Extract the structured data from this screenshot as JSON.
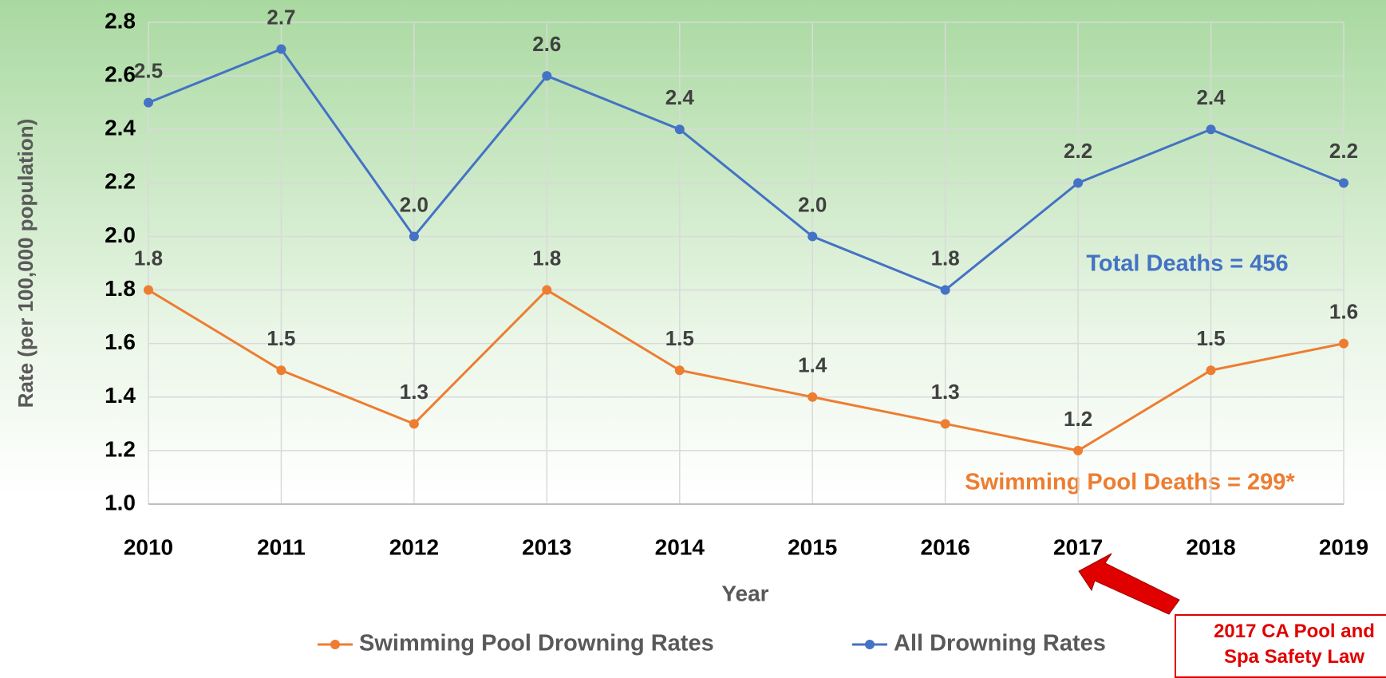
{
  "chart_data": {
    "type": "line",
    "categories": [
      "2010",
      "2011",
      "2012",
      "2013",
      "2014",
      "2015",
      "2016",
      "2017",
      "2018",
      "2019"
    ],
    "series": [
      {
        "name": "Swimming Pool Drowning Rates",
        "color": "#ed7d31",
        "values": [
          1.8,
          1.5,
          1.3,
          1.8,
          1.5,
          1.4,
          1.3,
          1.2,
          1.5,
          1.6
        ],
        "value_labels": [
          "1.8",
          "1.5",
          "1.3",
          "1.8",
          "1.5",
          "1.4",
          "1.3",
          "1.2",
          "1.5",
          "1.6"
        ]
      },
      {
        "name": "All Drowning Rates",
        "color": "#4472c4",
        "values": [
          2.5,
          2.7,
          2.0,
          2.6,
          2.4,
          2.0,
          1.8,
          2.2,
          2.4,
          2.2
        ],
        "value_labels": [
          "2.5",
          "2.7",
          "2.0",
          "2.6",
          "2.4",
          "2.0",
          "1.8",
          "2.2",
          "2.4",
          "2.2"
        ]
      }
    ],
    "xlabel": "Year",
    "ylabel": "Rate (per 100,000 population)",
    "ylim": [
      1.0,
      2.8
    ],
    "yticks": [
      {
        "value": 1.0,
        "label": "1.0"
      },
      1.2,
      1.4,
      1.6,
      1.8,
      {
        "value": 2.0,
        "label": "2.0"
      },
      2.2,
      2.4,
      2.6,
      2.8
    ],
    "grid": true,
    "annotations": [
      "Total Deaths = 456",
      "Swimming Pool Deaths = 299*"
    ],
    "note": [
      "2017 CA Pool and",
      "Spa Safety Law"
    ]
  }
}
